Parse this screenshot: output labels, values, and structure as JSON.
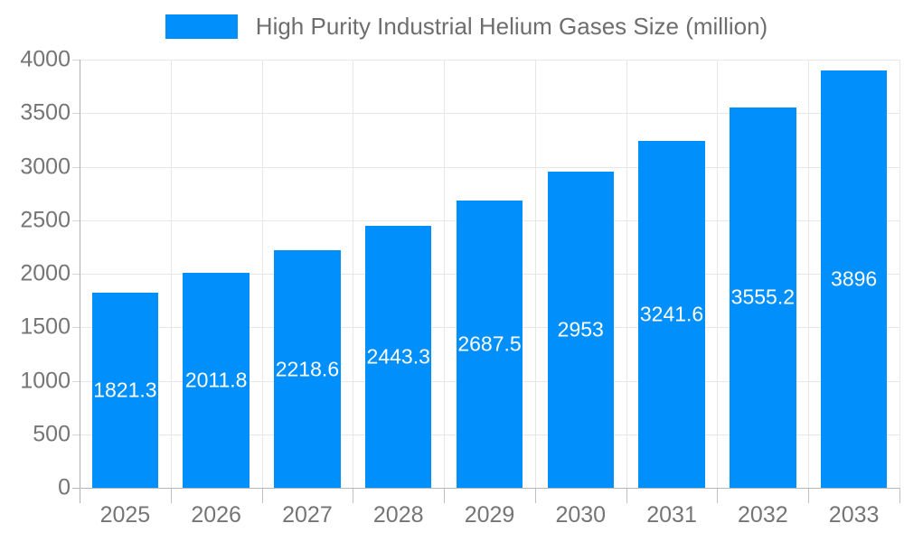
{
  "chart_data": {
    "type": "bar",
    "legend": "High Purity Industrial Helium Gases Size (million)",
    "legend_position": "top",
    "categories": [
      "2025",
      "2026",
      "2027",
      "2028",
      "2029",
      "2030",
      "2031",
      "2032",
      "2033"
    ],
    "values": [
      1821.3,
      2011.8,
      2218.6,
      2443.3,
      2687.5,
      2953,
      3241.6,
      3555.2,
      3896
    ],
    "ylim": [
      0,
      4000
    ],
    "yticks": [
      0,
      500,
      1000,
      1500,
      2000,
      2500,
      3000,
      3500,
      4000
    ],
    "grid": true,
    "xlabel": "",
    "ylabel": "",
    "colors": {
      "bar": "#008FFB",
      "bar_label": "#ffffff",
      "axis_text": "#757575",
      "legend_text": "#6e6e6e",
      "gridline": "#e7e7e7",
      "axis_line": "#b6b6b6"
    }
  }
}
